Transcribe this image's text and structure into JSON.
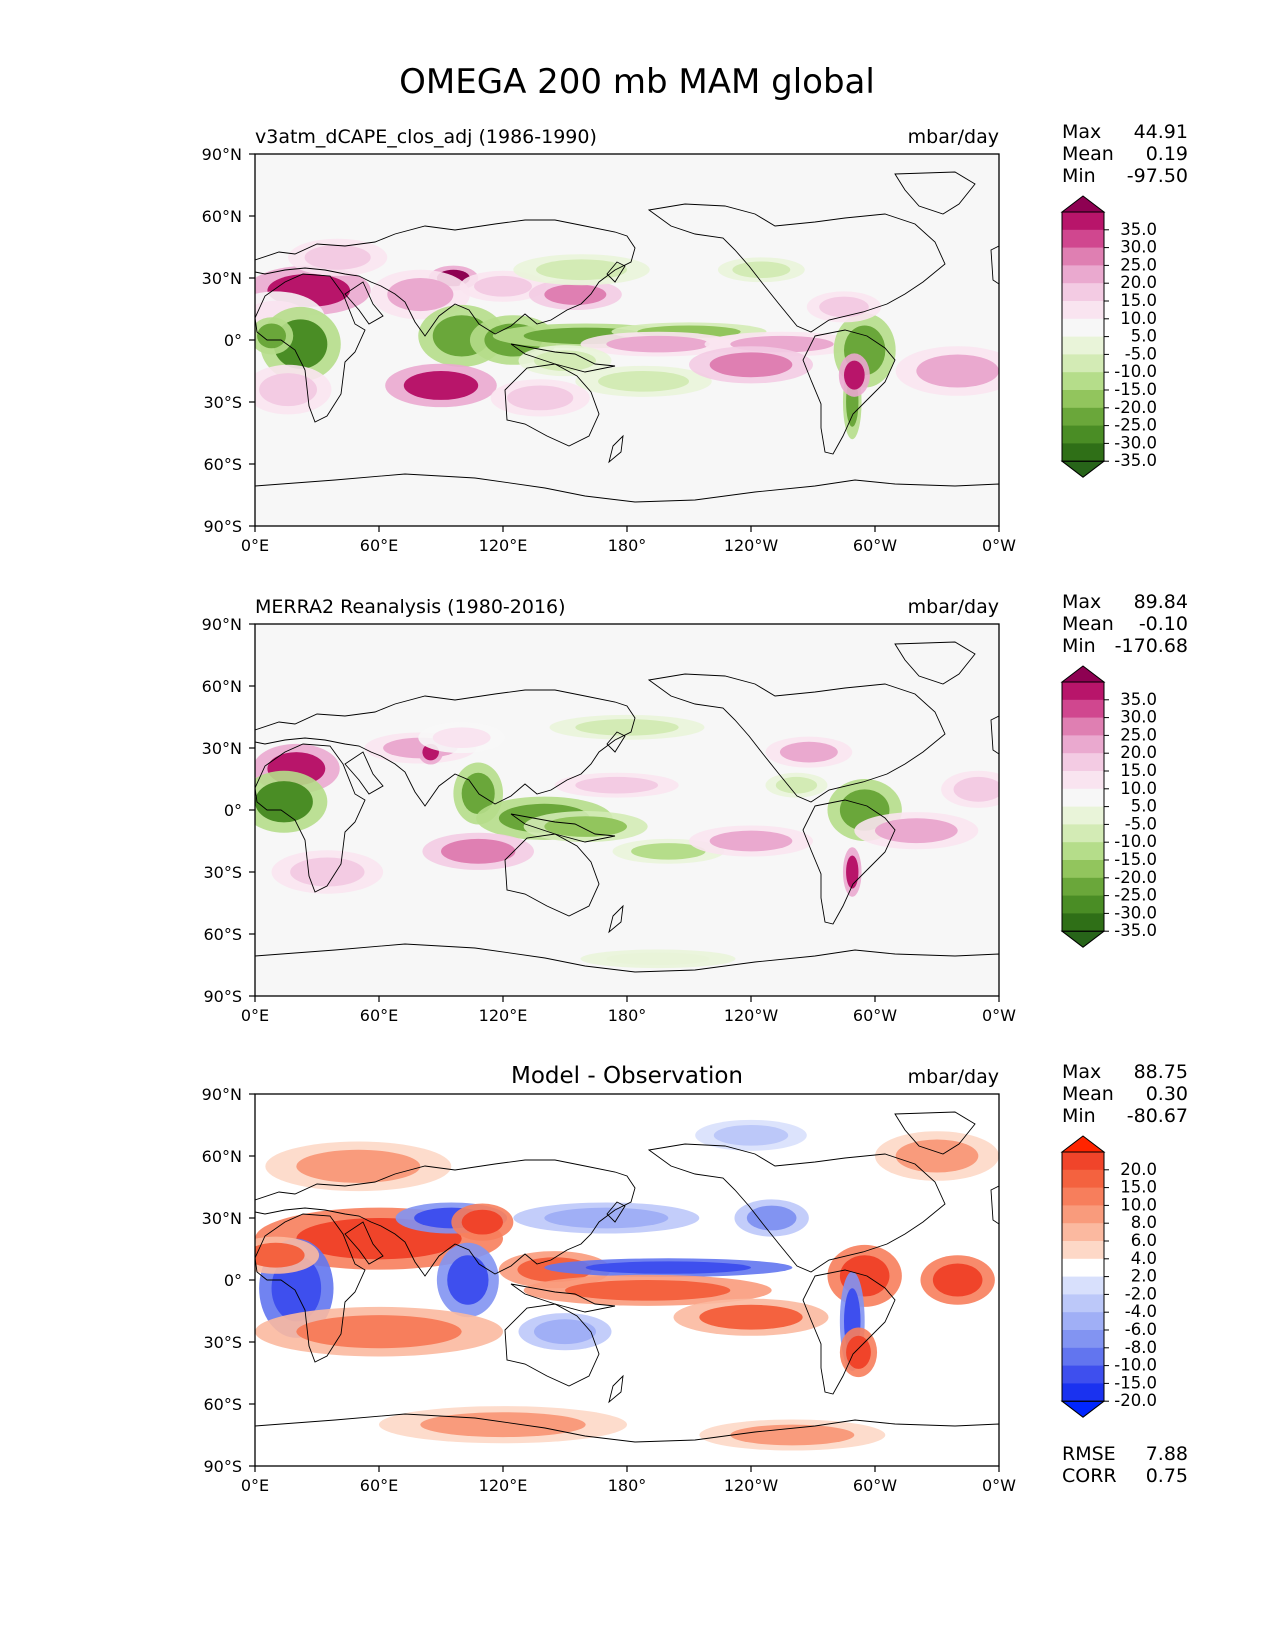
{
  "title": "OMEGA 200 mb MAM global",
  "chart_data": [
    {
      "type": "heatmap",
      "panel_title_left": "v3atm_dCAPE_clos_adj (1986-1990)",
      "panel_title_center": "",
      "units": "mbar/day",
      "stats": {
        "max_label": "Max",
        "max": "44.91",
        "mean_label": "Mean",
        "mean": "0.19",
        "min_label": "Min",
        "min": "-97.50"
      },
      "colorbar": {
        "labels": [
          "35.0",
          "30.0",
          "25.0",
          "20.0",
          "15.0",
          "10.0",
          "5.0",
          "-5.0",
          "-10.0",
          "-15.0",
          "-20.0",
          "-25.0",
          "-30.0",
          "-35.0"
        ],
        "colors": [
          "#8e0152",
          "#b8156a",
          "#d0478f",
          "#df7fb2",
          "#eaa9cf",
          "#f3cbe3",
          "#f9e4f0",
          "#f7f7f7",
          "#e9f4d9",
          "#d3ebb5",
          "#b5dd8a",
          "#92c55d",
          "#6aa73a",
          "#4a8d25",
          "#2f6f17",
          "#276419"
        ]
      },
      "xticks": [
        "0°E",
        "60°E",
        "120°E",
        "180°",
        "120°W",
        "60°W",
        "0°W"
      ],
      "yticks": [
        "90°N",
        "60°N",
        "30°N",
        "0°",
        "30°S",
        "60°S",
        "90°S"
      ],
      "features": [
        {
          "lon": 26,
          "lat": 24,
          "rx": 20,
          "ry": 8,
          "v": 33
        },
        {
          "lon": 10,
          "lat": 10,
          "rx": 16,
          "ry": 9,
          "v": 8
        },
        {
          "lon": 22,
          "lat": -2,
          "rx": 13,
          "ry": 12,
          "v": -32
        },
        {
          "lon": 8,
          "lat": 2,
          "rx": 7,
          "ry": 6,
          "v": -28
        },
        {
          "lon": 96,
          "lat": 30,
          "rx": 8,
          "ry": 4,
          "v": 35
        },
        {
          "lon": 80,
          "lat": 22,
          "rx": 16,
          "ry": 8,
          "v": 18
        },
        {
          "lon": 120,
          "lat": 26,
          "rx": 14,
          "ry": 5,
          "v": 14
        },
        {
          "lon": 155,
          "lat": 22,
          "rx": 15,
          "ry": 5,
          "v": 22
        },
        {
          "lon": 100,
          "lat": 2,
          "rx": 14,
          "ry": 10,
          "v": -30
        },
        {
          "lon": 125,
          "lat": 0,
          "rx": 14,
          "ry": 8,
          "v": -28
        },
        {
          "lon": 160,
          "lat": 2,
          "rx": 30,
          "ry": 4,
          "v": -30
        },
        {
          "lon": 210,
          "lat": 4,
          "rx": 25,
          "ry": 3,
          "v": -25
        },
        {
          "lon": 195,
          "lat": -2,
          "rx": 25,
          "ry": 4,
          "v": 18
        },
        {
          "lon": 255,
          "lat": -2,
          "rx": 25,
          "ry": 4,
          "v": 16
        },
        {
          "lon": 158,
          "lat": 34,
          "rx": 22,
          "ry": 5,
          "v": -14
        },
        {
          "lon": 150,
          "lat": -10,
          "rx": 15,
          "ry": 5,
          "v": -12
        },
        {
          "lon": 188,
          "lat": -20,
          "rx": 22,
          "ry": 5,
          "v": -14
        },
        {
          "lon": 90,
          "lat": -22,
          "rx": 18,
          "ry": 7,
          "v": 30
        },
        {
          "lon": 16,
          "lat": -24,
          "rx": 14,
          "ry": 8,
          "v": 14
        },
        {
          "lon": 240,
          "lat": -12,
          "rx": 20,
          "ry": 6,
          "v": 20
        },
        {
          "lon": 295,
          "lat": -5,
          "rx": 10,
          "ry": 12,
          "v": -28
        },
        {
          "lon": 289,
          "lat": -30,
          "rx": 3,
          "ry": 12,
          "v": -30
        },
        {
          "lon": 290,
          "lat": -17,
          "rx": 5,
          "ry": 7,
          "v": 30
        },
        {
          "lon": 285,
          "lat": 16,
          "rx": 12,
          "ry": 5,
          "v": 14
        },
        {
          "lon": 340,
          "lat": -15,
          "rx": 20,
          "ry": 8,
          "v": 18
        },
        {
          "lon": 245,
          "lat": 34,
          "rx": 14,
          "ry": 4,
          "v": -12
        },
        {
          "lon": 138,
          "lat": -28,
          "rx": 16,
          "ry": 6,
          "v": 10
        },
        {
          "lon": 40,
          "lat": 40,
          "rx": 16,
          "ry": 6,
          "v": 10
        }
      ]
    },
    {
      "type": "heatmap",
      "panel_title_left": "MERRA2 Reanalysis (1980-2016)",
      "panel_title_center": "",
      "units": "mbar/day",
      "stats": {
        "max_label": "Max",
        "max": "89.84",
        "mean_label": "Mean",
        "mean": "-0.10",
        "min_label": "Min",
        "min": "-170.68"
      },
      "colorbar": {
        "labels": [
          "35.0",
          "30.0",
          "25.0",
          "20.0",
          "15.0",
          "10.0",
          "5.0",
          "-5.0",
          "-10.0",
          "-15.0",
          "-20.0",
          "-25.0",
          "-30.0",
          "-35.0"
        ],
        "colors": [
          "#8e0152",
          "#b8156a",
          "#d0478f",
          "#df7fb2",
          "#eaa9cf",
          "#f3cbe3",
          "#f9e4f0",
          "#f7f7f7",
          "#e9f4d9",
          "#d3ebb5",
          "#b5dd8a",
          "#92c55d",
          "#6aa73a",
          "#4a8d25",
          "#2f6f17",
          "#276419"
        ]
      },
      "xticks": [
        "0°E",
        "60°E",
        "120°E",
        "180°",
        "120°W",
        "60°W",
        "0°W"
      ],
      "yticks": [
        "90°N",
        "60°N",
        "30°N",
        "0°",
        "30°S",
        "60°S",
        "90°S"
      ],
      "features": [
        {
          "lon": 20,
          "lat": 20,
          "rx": 14,
          "ry": 8,
          "v": 30
        },
        {
          "lon": 14,
          "lat": 4,
          "rx": 14,
          "ry": 10,
          "v": -32
        },
        {
          "lon": 80,
          "lat": 30,
          "rx": 18,
          "ry": 5,
          "v": 18
        },
        {
          "lon": 85,
          "lat": 28,
          "rx": 4,
          "ry": 4,
          "v": 34
        },
        {
          "lon": 100,
          "lat": 35,
          "rx": 14,
          "ry": 5,
          "v": 8
        },
        {
          "lon": 108,
          "lat": 8,
          "rx": 8,
          "ry": 10,
          "v": -30
        },
        {
          "lon": 140,
          "lat": -4,
          "rx": 22,
          "ry": 7,
          "v": -30
        },
        {
          "lon": 160,
          "lat": -8,
          "rx": 20,
          "ry": 5,
          "v": -22
        },
        {
          "lon": 175,
          "lat": 12,
          "rx": 20,
          "ry": 4,
          "v": 12
        },
        {
          "lon": 180,
          "lat": 40,
          "rx": 25,
          "ry": 4,
          "v": -12
        },
        {
          "lon": 200,
          "lat": -20,
          "rx": 18,
          "ry": 4,
          "v": -16
        },
        {
          "lon": 108,
          "lat": -20,
          "rx": 18,
          "ry": 6,
          "v": 22
        },
        {
          "lon": 240,
          "lat": -15,
          "rx": 20,
          "ry": 5,
          "v": 18
        },
        {
          "lon": 295,
          "lat": 0,
          "rx": 12,
          "ry": 10,
          "v": -30
        },
        {
          "lon": 289,
          "lat": -30,
          "rx": 3,
          "ry": 8,
          "v": 32
        },
        {
          "lon": 320,
          "lat": -10,
          "rx": 20,
          "ry": 6,
          "v": 16
        },
        {
          "lon": 350,
          "lat": 10,
          "rx": 12,
          "ry": 6,
          "v": 14
        },
        {
          "lon": 262,
          "lat": 12,
          "rx": 10,
          "ry": 4,
          "v": -14
        },
        {
          "lon": 268,
          "lat": 28,
          "rx": 14,
          "ry": 5,
          "v": 16
        },
        {
          "lon": 35,
          "lat": -30,
          "rx": 18,
          "ry": 7,
          "v": 10
        },
        {
          "lon": 195,
          "lat": -72,
          "rx": 25,
          "ry": 3,
          "v": -10
        }
      ]
    },
    {
      "type": "heatmap",
      "panel_title_left": "",
      "panel_title_center": "Model - Observation",
      "units": "mbar/day",
      "stats": {
        "max_label": "Max",
        "max": "88.75",
        "mean_label": "Mean",
        "mean": "0.30",
        "min_label": "Min",
        "min": "-80.67"
      },
      "metrics": {
        "rmse_label": "RMSE",
        "rmse": "7.88",
        "corr_label": "CORR",
        "corr": "0.75"
      },
      "colorbar": {
        "labels": [
          "20.0",
          "15.0",
          "10.0",
          "8.0",
          "6.0",
          "4.0",
          "2.0",
          "-2.0",
          "-4.0",
          "-6.0",
          "-8.0",
          "-10.0",
          "-15.0",
          "-20.0"
        ],
        "colors": [
          "#ff2400",
          "#f0442a",
          "#f4623f",
          "#f77e5c",
          "#f99b7c",
          "#fbb9a0",
          "#fdd8c7",
          "#ffffff",
          "#d8e0fc",
          "#bcc8f9",
          "#a0aff6",
          "#8294f2",
          "#6275ef",
          "#3e4fee",
          "#1a32f0",
          "#0026ff"
        ]
      },
      "xticks": [
        "0°E",
        "60°E",
        "120°E",
        "180°",
        "120°W",
        "60°W",
        "0°W"
      ],
      "yticks": [
        "90°N",
        "60°N",
        "30°N",
        "0°",
        "30°S",
        "60°S",
        "90°S"
      ],
      "features": [
        {
          "lon": 60,
          "lat": 20,
          "rx": 40,
          "ry": 10,
          "v": 18
        },
        {
          "lon": 20,
          "lat": -4,
          "rx": 12,
          "ry": 16,
          "v": -20
        },
        {
          "lon": 10,
          "lat": 12,
          "rx": 14,
          "ry": 6,
          "v": 10
        },
        {
          "lon": 95,
          "lat": 30,
          "rx": 18,
          "ry": 5,
          "v": -18
        },
        {
          "lon": 110,
          "lat": 28,
          "rx": 10,
          "ry": 6,
          "v": 18
        },
        {
          "lon": 103,
          "lat": 0,
          "rx": 10,
          "ry": 12,
          "v": -18
        },
        {
          "lon": 145,
          "lat": 5,
          "rx": 18,
          "ry": 6,
          "v": 12
        },
        {
          "lon": 170,
          "lat": 30,
          "rx": 30,
          "ry": 5,
          "v": -8
        },
        {
          "lon": 200,
          "lat": 6,
          "rx": 40,
          "ry": 3,
          "v": -20
        },
        {
          "lon": 190,
          "lat": -5,
          "rx": 40,
          "ry": 5,
          "v": 14
        },
        {
          "lon": 60,
          "lat": -25,
          "rx": 40,
          "ry": 8,
          "v": 8
        },
        {
          "lon": 150,
          "lat": -25,
          "rx": 15,
          "ry": 6,
          "v": -8
        },
        {
          "lon": 240,
          "lat": -18,
          "rx": 25,
          "ry": 6,
          "v": 10
        },
        {
          "lon": 295,
          "lat": 2,
          "rx": 12,
          "ry": 10,
          "v": 16
        },
        {
          "lon": 289,
          "lat": -20,
          "rx": 4,
          "ry": 16,
          "v": -18
        },
        {
          "lon": 292,
          "lat": -35,
          "rx": 6,
          "ry": 8,
          "v": 16
        },
        {
          "lon": 340,
          "lat": 0,
          "rx": 12,
          "ry": 8,
          "v": 16
        },
        {
          "lon": 250,
          "lat": 30,
          "rx": 12,
          "ry": 6,
          "v": -10
        },
        {
          "lon": 240,
          "lat": 70,
          "rx": 18,
          "ry": 5,
          "v": -6
        },
        {
          "lon": 120,
          "lat": -70,
          "rx": 40,
          "ry": 6,
          "v": 6
        },
        {
          "lon": 260,
          "lat": -75,
          "rx": 30,
          "ry": 5,
          "v": 6
        },
        {
          "lon": 50,
          "lat": 55,
          "rx": 30,
          "ry": 8,
          "v": 6
        },
        {
          "lon": 330,
          "lat": 60,
          "rx": 20,
          "ry": 8,
          "v": 6
        }
      ]
    }
  ]
}
